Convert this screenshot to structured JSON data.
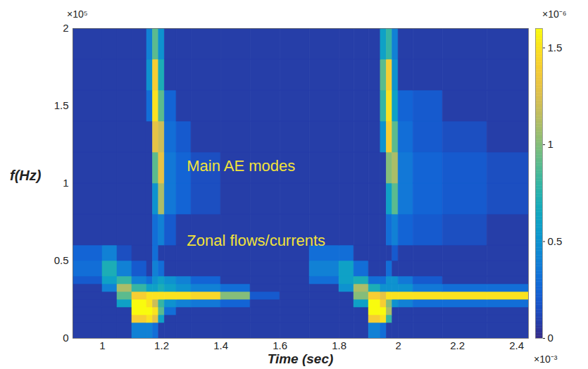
{
  "chart_data": {
    "type": "heatmap",
    "x_label": "Time (sec)",
    "y_label": "f(Hz)",
    "x_multiplier": "×10⁻³",
    "y_multiplier": "×10⁵",
    "colorbar_multiplier": "×10⁻⁶",
    "xlim": [
      0.9,
      2.44
    ],
    "ylim": [
      0,
      2
    ],
    "xticks": [
      1,
      1.2,
      1.4,
      1.6,
      1.8,
      2,
      2.2,
      2.4
    ],
    "yticks": [
      0,
      0.5,
      1,
      1.5,
      2
    ],
    "x_edges": [
      0.9,
      1.0,
      1.05,
      1.1,
      1.15,
      1.17,
      1.19,
      1.21,
      1.25,
      1.3,
      1.4,
      1.5,
      1.6,
      1.7,
      1.8,
      1.85,
      1.9,
      1.94,
      1.96,
      1.98,
      2.0,
      2.05,
      2.15,
      2.3,
      2.44
    ],
    "y_edges": [
      0,
      0.1,
      0.15,
      0.2,
      0.25,
      0.3,
      0.35,
      0.4,
      0.5,
      0.6,
      0.8,
      1.0,
      1.2,
      1.4,
      1.6,
      1.8,
      2.0
    ],
    "cells": [
      [
        0.08,
        0.08,
        0.08,
        0.4,
        0.4,
        0.3,
        0.08,
        0.08,
        0.08,
        0.08,
        0.08,
        0.08,
        0.08,
        0.08,
        0.08,
        0.08,
        0.4,
        0.3,
        0.08,
        0.08,
        0.08,
        0.08,
        0.08,
        0.08
      ],
      [
        0.08,
        0.08,
        0.08,
        1.4,
        1.5,
        1.3,
        0.6,
        0.08,
        0.08,
        0.08,
        0.08,
        0.08,
        0.08,
        0.08,
        0.08,
        0.08,
        1.4,
        1.5,
        0.8,
        0.08,
        0.08,
        0.08,
        0.08,
        0.08
      ],
      [
        0.08,
        0.08,
        0.08,
        1.6,
        1.6,
        1.5,
        0.9,
        0.3,
        0.08,
        0.08,
        0.08,
        0.08,
        0.08,
        0.08,
        0.08,
        0.08,
        1.6,
        1.6,
        1.1,
        0.08,
        0.08,
        0.08,
        0.08,
        0.08
      ],
      [
        0.08,
        0.08,
        0.6,
        1.6,
        1.5,
        1.2,
        0.8,
        0.5,
        0.4,
        0.35,
        0.25,
        0.08,
        0.08,
        0.08,
        0.08,
        0.6,
        1.6,
        1.4,
        1.0,
        0.5,
        0.4,
        0.3,
        0.3,
        0.3
      ],
      [
        0.08,
        0.08,
        0.9,
        1.4,
        1.5,
        1.5,
        1.5,
        1.5,
        1.5,
        1.45,
        1.0,
        0.2,
        0.08,
        0.08,
        0.08,
        1.0,
        1.4,
        1.3,
        1.5,
        1.5,
        1.5,
        1.5,
        1.5,
        1.5
      ],
      [
        0.08,
        0.4,
        1.1,
        0.8,
        0.6,
        0.6,
        0.7,
        0.6,
        0.5,
        0.4,
        0.3,
        0.08,
        0.08,
        0.08,
        0.5,
        1.1,
        0.7,
        0.5,
        0.5,
        0.5,
        0.5,
        0.35,
        0.3,
        0.3
      ],
      [
        0.2,
        0.6,
        0.8,
        0.4,
        0.3,
        0.5,
        0.6,
        0.5,
        0.4,
        0.25,
        0.08,
        0.08,
        0.08,
        0.3,
        0.6,
        0.7,
        0.3,
        0.3,
        0.5,
        0.5,
        0.35,
        0.2,
        0.08,
        0.08
      ],
      [
        0.3,
        0.7,
        0.4,
        0.2,
        0.08,
        0.4,
        0.3,
        0.08,
        0.08,
        0.08,
        0.08,
        0.08,
        0.08,
        0.4,
        0.6,
        0.3,
        0.08,
        0.08,
        0.3,
        0.08,
        0.08,
        0.08,
        0.08,
        0.08
      ],
      [
        0.25,
        0.4,
        0.15,
        0.08,
        0.08,
        0.3,
        0.08,
        0.08,
        0.08,
        0.08,
        0.08,
        0.08,
        0.08,
        0.3,
        0.3,
        0.08,
        0.08,
        0.08,
        0.08,
        0.2,
        0.08,
        0.08,
        0.08,
        0.08
      ],
      [
        0.08,
        0.08,
        0.08,
        0.08,
        0.08,
        0.3,
        0.4,
        0.2,
        0.08,
        0.08,
        0.08,
        0.08,
        0.08,
        0.08,
        0.08,
        0.08,
        0.08,
        0.08,
        0.3,
        0.4,
        0.25,
        0.2,
        0.15,
        0.08
      ],
      [
        0.08,
        0.08,
        0.08,
        0.08,
        0.08,
        0.5,
        1.1,
        0.35,
        0.25,
        0.15,
        0.08,
        0.08,
        0.08,
        0.08,
        0.08,
        0.08,
        0.08,
        0.08,
        0.6,
        0.9,
        0.35,
        0.25,
        0.2,
        0.15
      ],
      [
        0.08,
        0.08,
        0.08,
        0.08,
        0.08,
        0.9,
        1.3,
        0.35,
        0.25,
        0.15,
        0.08,
        0.08,
        0.08,
        0.08,
        0.08,
        0.08,
        0.08,
        0.08,
        1.0,
        1.1,
        0.35,
        0.25,
        0.2,
        0.15
      ],
      [
        0.08,
        0.08,
        0.08,
        0.08,
        0.08,
        1.3,
        1.2,
        0.3,
        0.2,
        0.08,
        0.08,
        0.08,
        0.08,
        0.08,
        0.08,
        0.08,
        0.08,
        0.5,
        1.4,
        0.9,
        0.3,
        0.2,
        0.15,
        0.08
      ],
      [
        0.08,
        0.08,
        0.08,
        0.08,
        0.3,
        1.5,
        0.9,
        0.25,
        0.08,
        0.08,
        0.08,
        0.08,
        0.08,
        0.08,
        0.08,
        0.08,
        0.08,
        0.8,
        1.5,
        0.6,
        0.25,
        0.2,
        0.08,
        0.08
      ],
      [
        0.08,
        0.08,
        0.08,
        0.08,
        0.5,
        1.4,
        0.7,
        0.08,
        0.08,
        0.08,
        0.08,
        0.08,
        0.08,
        0.08,
        0.08,
        0.08,
        0.08,
        0.9,
        1.4,
        0.5,
        0.08,
        0.08,
        0.08,
        0.08
      ],
      [
        0.08,
        0.08,
        0.08,
        0.08,
        0.4,
        0.9,
        0.5,
        0.08,
        0.08,
        0.08,
        0.08,
        0.08,
        0.08,
        0.08,
        0.08,
        0.08,
        0.08,
        0.6,
        0.8,
        0.4,
        0.08,
        0.08,
        0.08,
        0.08
      ]
    ],
    "colorbar_range": [
      0,
      1.6
    ],
    "colorbar_ticks": [
      0,
      0.5,
      1,
      1.5
    ],
    "annotations": [
      {
        "text": "Main AE modes",
        "x": 1.285,
        "y": 1.11
      },
      {
        "text": "Zonal flows/currents",
        "x": 1.285,
        "y": 0.63
      }
    ]
  }
}
